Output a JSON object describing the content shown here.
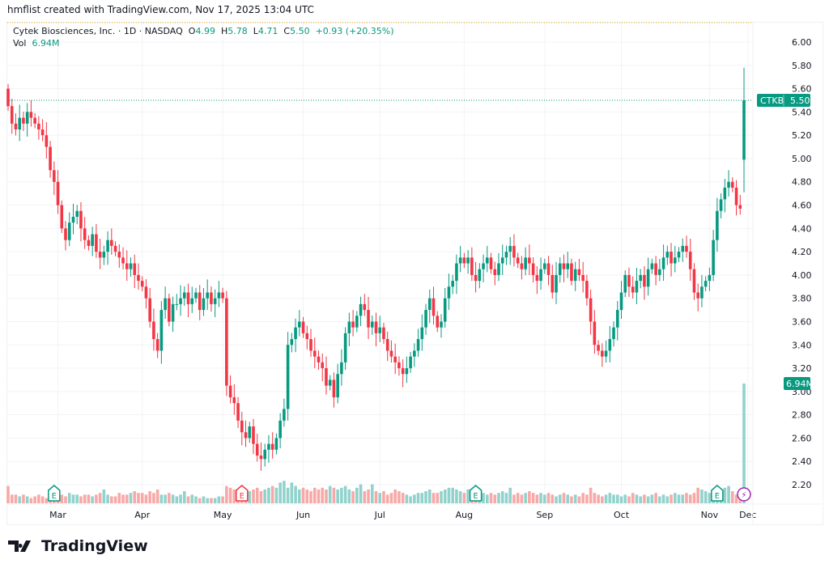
{
  "credit": "hmflist created with TradingView.com, Nov 17, 2025 13:04 UTC",
  "legend": {
    "name": "Cytek Biosciences, Inc. · 1D · NASDAQ",
    "o_label": "O",
    "o": "4.99",
    "h_label": "H",
    "h": "5.78",
    "l_label": "L",
    "l": "4.71",
    "c_label": "C",
    "c": "5.50",
    "change": "+0.93 (+20.35%)",
    "vol_label": "Vol",
    "vol": "6.94M"
  },
  "price_badge": {
    "symbol": "CTKB",
    "price": "5.50"
  },
  "volume_badge": "6.94M",
  "logo": "TradingView",
  "colors": {
    "up": "#089981",
    "down": "#f23645",
    "up_vol": "#92d2cc",
    "down_vol": "#f7a9a7",
    "earnings": "#089981",
    "dividend": "#9c27b0"
  },
  "chart_data": {
    "type": "candlestick",
    "yticks": [
      "6.00",
      "5.80",
      "5.60",
      "5.40",
      "5.20",
      "5.00",
      "4.80",
      "4.60",
      "4.40",
      "4.20",
      "4.00",
      "3.80",
      "3.60",
      "3.40",
      "3.20",
      "3.00",
      "2.80",
      "2.60",
      "2.40",
      "2.20"
    ],
    "ylim": [
      2.2,
      6.0
    ],
    "months": [
      "Mar",
      "Apr",
      "May",
      "Jun",
      "Jul",
      "Aug",
      "Sep",
      "Oct",
      "Nov",
      "Dec"
    ],
    "month_start_index": [
      13,
      35,
      56,
      77,
      97,
      119,
      140,
      160,
      183,
      193
    ],
    "last_bar": {
      "open": 4.99,
      "high": 5.78,
      "low": 4.71,
      "close": 5.5
    },
    "first_open": 5.6,
    "closes": [
      5.45,
      5.3,
      5.25,
      5.35,
      5.3,
      5.4,
      5.35,
      5.3,
      5.25,
      5.2,
      5.1,
      4.9,
      4.8,
      4.6,
      4.4,
      4.3,
      4.45,
      4.5,
      4.55,
      4.4,
      4.3,
      4.25,
      4.35,
      4.2,
      4.15,
      4.2,
      4.3,
      4.25,
      4.2,
      4.15,
      4.1,
      4.05,
      4.1,
      4.0,
      3.95,
      3.9,
      3.8,
      3.6,
      3.45,
      3.35,
      3.7,
      3.8,
      3.6,
      3.75,
      3.75,
      3.8,
      3.85,
      3.75,
      3.8,
      3.85,
      3.7,
      3.8,
      3.85,
      3.75,
      3.8,
      3.85,
      3.8,
      3.05,
      2.95,
      2.9,
      2.75,
      2.65,
      2.6,
      2.7,
      2.55,
      2.45,
      2.42,
      2.5,
      2.55,
      2.5,
      2.6,
      2.75,
      2.85,
      3.4,
      3.45,
      3.55,
      3.6,
      3.5,
      3.45,
      3.35,
      3.3,
      3.25,
      3.2,
      3.05,
      3.1,
      2.95,
      3.15,
      3.25,
      3.5,
      3.6,
      3.55,
      3.65,
      3.75,
      3.7,
      3.55,
      3.6,
      3.5,
      3.55,
      3.45,
      3.35,
      3.3,
      3.25,
      3.2,
      3.15,
      3.2,
      3.3,
      3.35,
      3.45,
      3.55,
      3.7,
      3.8,
      3.65,
      3.55,
      3.6,
      3.8,
      3.9,
      3.95,
      4.1,
      4.15,
      4.1,
      4.15,
      4.0,
      3.95,
      4.05,
      4.1,
      4.15,
      4.05,
      4.0,
      4.1,
      4.15,
      4.2,
      4.25,
      4.15,
      4.1,
      4.05,
      4.15,
      4.1,
      4.0,
      3.95,
      4.05,
      4.1,
      4.0,
      3.85,
      4.0,
      4.1,
      4.05,
      4.1,
      3.95,
      4.05,
      4.0,
      3.95,
      3.8,
      3.6,
      3.4,
      3.35,
      3.3,
      3.35,
      3.45,
      3.55,
      3.7,
      3.85,
      4.0,
      3.9,
      3.85,
      3.95,
      4.0,
      3.9,
      4.05,
      4.1,
      4.0,
      4.05,
      4.15,
      4.2,
      4.1,
      4.15,
      4.2,
      4.25,
      4.2,
      4.05,
      3.85,
      3.8,
      3.9,
      3.95,
      4.0,
      4.3,
      4.55,
      4.65,
      4.75,
      4.8,
      4.75,
      4.6,
      4.57,
      5.5
    ],
    "volumes_m": [
      1.0,
      0.5,
      0.5,
      0.4,
      0.5,
      0.4,
      0.3,
      0.4,
      0.5,
      0.4,
      0.3,
      0.4,
      0.5,
      0.6,
      0.5,
      0.4,
      0.6,
      0.5,
      0.5,
      0.4,
      0.5,
      0.5,
      0.4,
      0.5,
      0.6,
      0.8,
      0.5,
      0.4,
      0.4,
      0.6,
      0.5,
      0.5,
      0.6,
      0.7,
      0.6,
      0.6,
      0.5,
      0.7,
      0.6,
      0.8,
      0.5,
      0.5,
      0.6,
      0.5,
      0.4,
      0.5,
      0.7,
      0.4,
      0.5,
      0.4,
      0.3,
      0.4,
      0.3,
      0.3,
      0.3,
      0.4,
      0.4,
      1.0,
      0.9,
      0.8,
      0.8,
      0.7,
      0.6,
      0.7,
      0.8,
      0.9,
      0.7,
      0.8,
      0.9,
      1.0,
      0.9,
      1.2,
      1.3,
      0.9,
      1.2,
      1.0,
      0.8,
      0.9,
      0.8,
      0.7,
      0.9,
      0.8,
      0.9,
      0.8,
      1.0,
      0.9,
      0.8,
      0.9,
      1.0,
      0.8,
      0.7,
      0.9,
      1.1,
      0.7,
      0.8,
      1.1,
      0.7,
      0.6,
      0.7,
      0.5,
      0.6,
      0.8,
      0.7,
      0.6,
      0.5,
      0.4,
      0.5,
      0.6,
      0.6,
      0.7,
      0.8,
      0.6,
      0.6,
      0.7,
      0.8,
      0.9,
      0.9,
      0.8,
      0.7,
      0.6,
      0.8,
      0.7,
      0.6,
      0.5,
      0.6,
      0.5,
      0.6,
      0.5,
      0.6,
      0.7,
      0.6,
      0.9,
      0.5,
      0.6,
      0.5,
      0.6,
      0.7,
      0.6,
      0.5,
      0.6,
      0.5,
      0.6,
      0.5,
      0.4,
      0.5,
      0.6,
      0.5,
      0.4,
      0.5,
      0.4,
      0.6,
      0.5,
      0.9,
      0.6,
      0.5,
      0.4,
      0.5,
      0.6,
      0.5,
      0.5,
      0.4,
      0.5,
      0.4,
      0.6,
      0.5,
      0.4,
      0.5,
      0.4,
      0.5,
      0.6,
      0.4,
      0.5,
      0.4,
      0.5,
      0.6,
      0.5,
      0.5,
      0.6,
      0.5,
      0.6,
      0.9,
      0.8,
      0.7,
      0.6,
      0.8,
      0.9,
      0.8,
      0.9,
      1.0,
      0.7,
      0.5,
      0.6,
      6.94
    ],
    "events": [
      {
        "type": "earnings",
        "index": 12,
        "label": "E",
        "color": "#089981"
      },
      {
        "type": "earnings",
        "index": 61,
        "label": "E",
        "color": "#f23645"
      },
      {
        "type": "earnings",
        "index": 122,
        "label": "E",
        "color": "#089981"
      },
      {
        "type": "earnings",
        "index": 185,
        "label": "E",
        "color": "#089981"
      },
      {
        "type": "dividend",
        "index": 192,
        "label": "⚡",
        "color": "#9c27b0"
      }
    ]
  }
}
